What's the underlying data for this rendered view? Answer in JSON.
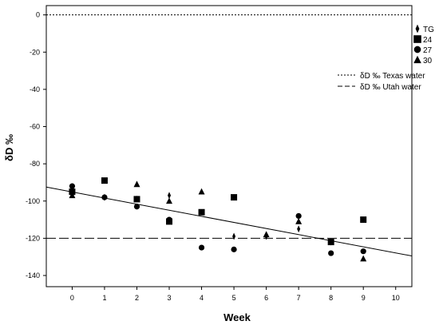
{
  "chart_data": {
    "type": "scatter",
    "xlabel": "Week",
    "ylabel": "δD ‰",
    "xlim": [
      -0.8,
      10.5
    ],
    "ylim": [
      -146,
      5
    ],
    "x_ticks": [
      0,
      1,
      2,
      3,
      4,
      5,
      6,
      7,
      8,
      9,
      10
    ],
    "y_ticks": [
      0,
      -20,
      -40,
      -60,
      -80,
      -100,
      -120,
      -140
    ],
    "grid": false,
    "legend_position": "right",
    "series": [
      {
        "name": "TG",
        "marker": "diamond",
        "points": [
          {
            "x": 0,
            "y": -96
          },
          {
            "x": 1,
            "y": -98
          },
          {
            "x": 2,
            "y": -99
          },
          {
            "x": 3,
            "y": -97
          },
          {
            "x": 5,
            "y": -119
          },
          {
            "x": 6,
            "y": -119
          },
          {
            "x": 7,
            "y": -115
          },
          {
            "x": 8,
            "y": -122
          }
        ]
      },
      {
        "name": "24",
        "marker": "square",
        "points": [
          {
            "x": 0,
            "y": -95
          },
          {
            "x": 1,
            "y": -89
          },
          {
            "x": 2,
            "y": -99
          },
          {
            "x": 3,
            "y": -111
          },
          {
            "x": 4,
            "y": -106
          },
          {
            "x": 5,
            "y": -98
          },
          {
            "x": 8,
            "y": -122
          },
          {
            "x": 9,
            "y": -110
          }
        ]
      },
      {
        "name": "27",
        "marker": "circle",
        "points": [
          {
            "x": 0,
            "y": -92
          },
          {
            "x": 1,
            "y": -98
          },
          {
            "x": 2,
            "y": -103
          },
          {
            "x": 3,
            "y": -110
          },
          {
            "x": 4,
            "y": -125
          },
          {
            "x": 5,
            "y": -126
          },
          {
            "x": 7,
            "y": -108
          },
          {
            "x": 8,
            "y": -128
          },
          {
            "x": 9,
            "y": -127
          }
        ]
      },
      {
        "name": "30",
        "marker": "triangle",
        "points": [
          {
            "x": 0,
            "y": -97
          },
          {
            "x": 2,
            "y": -91
          },
          {
            "x": 3,
            "y": -100
          },
          {
            "x": 4,
            "y": -95
          },
          {
            "x": 6,
            "y": -118
          },
          {
            "x": 7,
            "y": -111
          },
          {
            "x": 9,
            "y": -131
          }
        ]
      }
    ],
    "reference_lines": [
      {
        "name": "δD ‰ Texas water",
        "y": 0,
        "style": "dotted"
      },
      {
        "name": "δD ‰ Utah water",
        "y": -120,
        "style": "dashed"
      }
    ],
    "trend_line": {
      "x": [
        -0.8,
        10.5
      ],
      "y": [
        -92.5,
        -129.5
      ]
    }
  }
}
